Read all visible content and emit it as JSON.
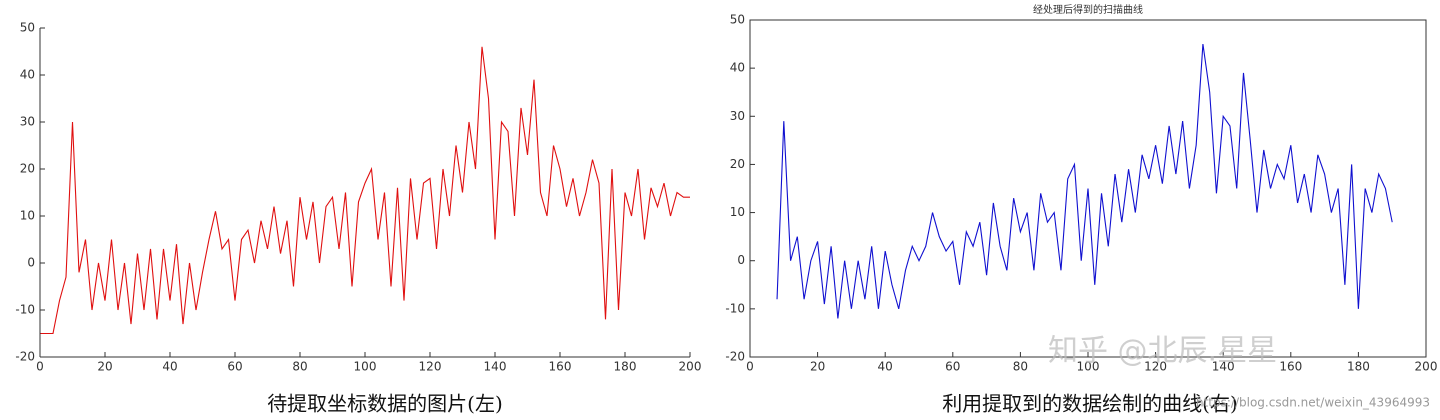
{
  "chart_data": [
    {
      "type": "line",
      "caption": "待提取坐标数据的图片(左)",
      "color": "#e01010",
      "xlim": [
        0,
        200
      ],
      "ylim": [
        -20,
        50
      ],
      "xticks": [
        0,
        20,
        40,
        60,
        80,
        100,
        120,
        140,
        160,
        180,
        200
      ],
      "yticks": [
        -20,
        -10,
        0,
        10,
        20,
        30,
        40,
        50
      ],
      "box": false,
      "x": [
        0,
        2,
        4,
        6,
        8,
        10,
        12,
        14,
        16,
        18,
        20,
        22,
        24,
        26,
        28,
        30,
        32,
        34,
        36,
        38,
        40,
        42,
        44,
        46,
        48,
        50,
        52,
        54,
        56,
        58,
        60,
        62,
        64,
        66,
        68,
        70,
        72,
        74,
        76,
        78,
        80,
        82,
        84,
        86,
        88,
        90,
        92,
        94,
        96,
        98,
        100,
        102,
        104,
        106,
        108,
        110,
        112,
        114,
        116,
        118,
        120,
        122,
        124,
        126,
        128,
        130,
        132,
        134,
        136,
        138,
        140,
        142,
        144,
        146,
        148,
        150,
        152,
        154,
        156,
        158,
        160,
        162,
        164,
        166,
        168,
        170,
        172,
        174,
        176,
        178,
        180,
        182,
        184,
        186,
        188,
        190,
        192,
        194,
        196,
        198,
        200
      ],
      "values": [
        -15,
        -15,
        -15,
        -8,
        -3,
        30,
        -2,
        5,
        -10,
        0,
        -8,
        5,
        -10,
        0,
        -13,
        2,
        -10,
        3,
        -12,
        3,
        -8,
        4,
        -13,
        0,
        -10,
        -2,
        5,
        11,
        3,
        5,
        -8,
        5,
        7,
        0,
        9,
        3,
        12,
        2,
        9,
        -5,
        14,
        5,
        13,
        0,
        12,
        14,
        3,
        15,
        -5,
        13,
        17,
        20,
        5,
        15,
        -5,
        16,
        -8,
        18,
        5,
        17,
        18,
        3,
        20,
        10,
        25,
        15,
        30,
        20,
        46,
        35,
        5,
        30,
        28,
        10,
        33,
        23,
        39,
        15,
        10,
        25,
        20,
        12,
        18,
        10,
        15,
        22,
        17,
        -12,
        20,
        -10,
        15,
        10,
        20,
        5,
        16,
        12,
        17,
        10,
        15,
        14,
        14
      ]
    },
    {
      "type": "line",
      "title": "经处理后得到的扫描曲线",
      "caption": "利用提取到的数据绘制的曲线(右)",
      "color": "#1010d0",
      "xlim": [
        0,
        200
      ],
      "ylim": [
        -20,
        50
      ],
      "xticks": [
        0,
        20,
        40,
        60,
        80,
        100,
        120,
        140,
        160,
        180,
        200
      ],
      "yticks": [
        -20,
        -10,
        0,
        10,
        20,
        30,
        40,
        50
      ],
      "box": true,
      "x": [
        8,
        10,
        12,
        14,
        16,
        18,
        20,
        22,
        24,
        26,
        28,
        30,
        32,
        34,
        36,
        38,
        40,
        42,
        44,
        46,
        48,
        50,
        52,
        54,
        56,
        58,
        60,
        62,
        64,
        66,
        68,
        70,
        72,
        74,
        76,
        78,
        80,
        82,
        84,
        86,
        88,
        90,
        92,
        94,
        96,
        98,
        100,
        102,
        104,
        106,
        108,
        110,
        112,
        114,
        116,
        118,
        120,
        122,
        124,
        126,
        128,
        130,
        132,
        134,
        136,
        138,
        140,
        142,
        144,
        146,
        148,
        150,
        152,
        154,
        156,
        158,
        160,
        162,
        164,
        166,
        168,
        170,
        172,
        174,
        176,
        178,
        180,
        182,
        184,
        186,
        188,
        190
      ],
      "values": [
        -8,
        29,
        0,
        5,
        -8,
        0,
        4,
        -9,
        3,
        -12,
        0,
        -10,
        0,
        -8,
        3,
        -10,
        2,
        -5,
        -10,
        -2,
        3,
        0,
        3,
        10,
        5,
        2,
        4,
        -5,
        6,
        3,
        8,
        -3,
        12,
        3,
        -2,
        13,
        6,
        10,
        -2,
        14,
        8,
        10,
        -2,
        17,
        20,
        0,
        15,
        -5,
        14,
        3,
        18,
        8,
        19,
        10,
        22,
        17,
        24,
        16,
        28,
        18,
        29,
        15,
        24,
        45,
        35,
        14,
        30,
        28,
        15,
        39,
        25,
        10,
        23,
        15,
        20,
        17,
        24,
        12,
        18,
        10,
        22,
        18,
        10,
        15,
        -5,
        20,
        -10,
        15,
        10,
        18,
        15,
        8
      ]
    }
  ],
  "watermark": {
    "text": "知乎 @北辰.星星",
    "url": "https://blog.csdn.net/weixin_43964993"
  }
}
